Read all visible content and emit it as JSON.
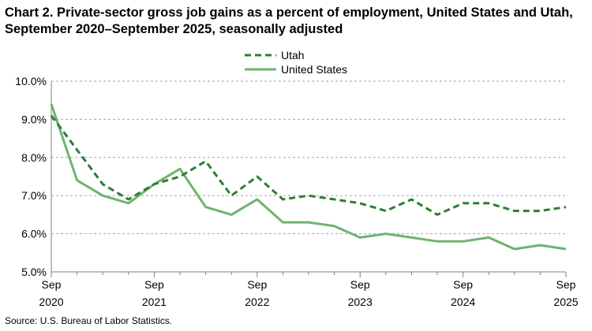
{
  "title": "Chart 2. Private-sector gross job gains as a percent of employment, United States and Utah, September 2020–September 2025, seasonally adjusted",
  "source": "Source: U.S. Bureau of Labor Statistics.",
  "chart_data": {
    "type": "line",
    "title": "Chart 2. Private-sector gross job gains as a percent of employment, United States and Utah, September 2020–September 2025, seasonally adjusted",
    "xlabel": "",
    "ylabel": "",
    "x": [
      "Sep 2020",
      "Dec 2020",
      "Mar 2021",
      "Jun 2021",
      "Sep 2021",
      "Dec 2021",
      "Mar 2022",
      "Jun 2022",
      "Sep 2022",
      "Dec 2022",
      "Mar 2023",
      "Jun 2023",
      "Sep 2023",
      "Dec 2023",
      "Mar 2024",
      "Jun 2024",
      "Sep 2024",
      "Dec 2024",
      "Mar 2025",
      "Jun 2025",
      "Sep 2025"
    ],
    "x_tick_labels": [
      {
        "line1": "Sep",
        "line2": "2020",
        "index": 0
      },
      {
        "line1": "Sep",
        "line2": "2021",
        "index": 4
      },
      {
        "line1": "Sep",
        "line2": "2022",
        "index": 8
      },
      {
        "line1": "Sep",
        "line2": "2023",
        "index": 12
      },
      {
        "line1": "Sep",
        "line2": "2024",
        "index": 16
      },
      {
        "line1": "Sep",
        "line2": "2025",
        "index": 20
      }
    ],
    "y_tick_labels": [
      "5.0%",
      "6.0%",
      "7.0%",
      "8.0%",
      "9.0%",
      "10.0%"
    ],
    "y_ticks": [
      5,
      6,
      7,
      8,
      9,
      10
    ],
    "ylim": [
      5,
      10
    ],
    "grid": "horizontal dashed",
    "legend_position": "top-center",
    "series": [
      {
        "name": "Utah",
        "style": "dashed",
        "color": "#2e7d32",
        "values": [
          9.1,
          8.2,
          7.3,
          6.9,
          7.3,
          7.5,
          7.9,
          7.0,
          7.5,
          6.9,
          7.0,
          6.9,
          6.8,
          6.6,
          6.9,
          6.5,
          6.8,
          6.8,
          6.6,
          6.6,
          6.7
        ]
      },
      {
        "name": "United States",
        "style": "solid",
        "color": "#6fb36f",
        "values": [
          9.4,
          7.4,
          7.0,
          6.8,
          7.3,
          7.7,
          6.7,
          6.5,
          6.9,
          6.3,
          6.3,
          6.2,
          5.9,
          6.0,
          5.9,
          5.8,
          5.8,
          5.9,
          5.6,
          5.7,
          5.6
        ]
      }
    ]
  }
}
